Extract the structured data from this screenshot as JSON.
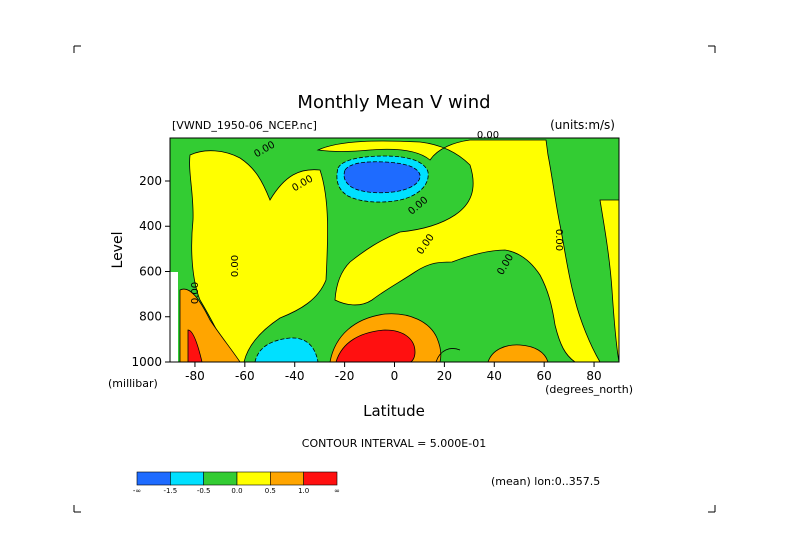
{
  "chart_data": {
    "type": "heatmap",
    "title": "Monthly Mean V wind",
    "dataset_label": "[VWND_1950-06_NCEP.nc]",
    "units_label": "(units:m/s)",
    "xlabel": "Latitude",
    "x_units": "(degrees_north)",
    "ylabel": "Level",
    "y_units": "(millibar)",
    "xlim": [
      -90,
      90
    ],
    "ylim": [
      1000,
      10
    ],
    "y_inverted": true,
    "x_ticks": [
      -80,
      -60,
      -40,
      -20,
      0,
      20,
      40,
      60,
      80
    ],
    "y_ticks": [
      200,
      400,
      600,
      800,
      1000
    ],
    "contour_interval_text": "CONTOUR INTERVAL = 5.000E-01",
    "contour_labels": [
      "0.00",
      "0.00",
      "0.00",
      "0.00",
      "0.00",
      "0.00",
      "0.00",
      "0.00",
      "0.00"
    ],
    "mean_note": "(mean) lon:0..357.5",
    "colorbar": {
      "labels": [
        "-∞",
        "-1.5",
        "-0.5",
        "0.0",
        "0.5",
        "1.0",
        "∞"
      ],
      "colors": [
        "#1e6bff",
        "#00e0ff",
        "#33cc33",
        "#ffff00",
        "#ffa500",
        "#ff1010"
      ]
    },
    "regions": [
      {
        "name": "background",
        "level": "-0.5..0.0",
        "color": "#33cc33"
      },
      {
        "name": "upper-southern-midlat",
        "level": "0.0..0.5",
        "color": "#ffff00"
      },
      {
        "name": "upper-tropics",
        "level": "0.0..0.5",
        "color": "#ffff00"
      },
      {
        "name": "subtropical-north",
        "level": "0.0..0.5",
        "color": "#ffff00"
      },
      {
        "name": "jet-core-negative",
        "level": "-1.5..-0.5",
        "color": "#00e0ff"
      },
      {
        "name": "jet-core-strong",
        "level": "<-1.5",
        "color": "#1e6bff"
      },
      {
        "name": "low-level-southern-orange",
        "level": "0.5..1.0",
        "color": "#ffa500"
      },
      {
        "name": "low-level-southern-cyan",
        "level": "-1.5..-0.5",
        "color": "#00e0ff"
      },
      {
        "name": "equatorial-orange",
        "level": "0.5..1.0",
        "color": "#ffa500"
      },
      {
        "name": "equatorial-red",
        "level": ">1.0",
        "color": "#ff1010"
      },
      {
        "name": "north-orange",
        "level": "0.5..1.0",
        "color": "#ffa500"
      },
      {
        "name": "polar-south-red",
        "level": ">1.0",
        "color": "#ff1010"
      }
    ]
  }
}
